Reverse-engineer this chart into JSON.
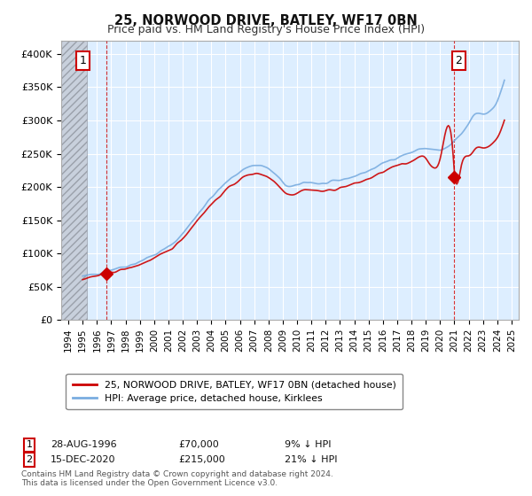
{
  "title": "25, NORWOOD DRIVE, BATLEY, WF17 0BN",
  "subtitle": "Price paid vs. HM Land Registry's House Price Index (HPI)",
  "title_fontsize": 10.5,
  "subtitle_fontsize": 9,
  "ylim": [
    0,
    420000
  ],
  "yticks": [
    0,
    50000,
    100000,
    150000,
    200000,
    250000,
    300000,
    350000,
    400000
  ],
  "ytick_labels": [
    "£0",
    "£50K",
    "£100K",
    "£150K",
    "£200K",
    "£250K",
    "£300K",
    "£350K",
    "£400K"
  ],
  "xmin": 1993.5,
  "xmax": 2025.5,
  "xticks": [
    1994,
    1995,
    1996,
    1997,
    1998,
    1999,
    2000,
    2001,
    2002,
    2003,
    2004,
    2005,
    2006,
    2007,
    2008,
    2009,
    2010,
    2011,
    2012,
    2013,
    2014,
    2015,
    2016,
    2017,
    2018,
    2019,
    2020,
    2021,
    2022,
    2023,
    2024,
    2025
  ],
  "hatch_xmin": 1993.5,
  "hatch_xmax": 1995.3,
  "transaction1_year": 1996.65,
  "transaction1_price": 70000,
  "transaction2_year": 2020.96,
  "transaction2_price": 215000,
  "red_line_color": "#cc0000",
  "blue_line_color": "#7aade0",
  "plot_bg_color": "#ddeeff",
  "hatch_color": "#b0b8c8",
  "legend_entry1": "25, NORWOOD DRIVE, BATLEY, WF17 0BN (detached house)",
  "legend_entry2": "HPI: Average price, detached house, Kirklees",
  "info1_date": "28-AUG-1996",
  "info1_price": "£70,000",
  "info1_hpi": "9% ↓ HPI",
  "info2_date": "15-DEC-2020",
  "info2_price": "£215,000",
  "info2_hpi": "21% ↓ HPI",
  "footnote": "Contains HM Land Registry data © Crown copyright and database right 2024.\nThis data is licensed under the Open Government Licence v3.0.",
  "bg_color": "#ffffff",
  "grid_color": "#ffffff"
}
